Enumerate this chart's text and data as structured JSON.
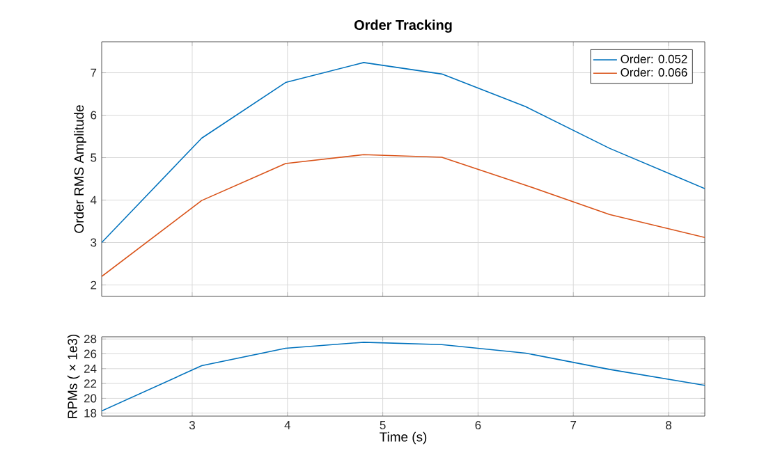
{
  "chart_data": [
    {
      "type": "line",
      "title": "Order Tracking",
      "ylabel": "Order RMS Amplitude",
      "xlim": [
        2.05,
        8.38
      ],
      "ylim": [
        1.73,
        7.73
      ],
      "xticks": [
        3,
        4,
        5,
        6,
        7,
        8
      ],
      "yticks": [
        2,
        3,
        4,
        5,
        6,
        7
      ],
      "grid": true,
      "legend": "top right",
      "tick_labels": "y",
      "x": [
        2.05,
        3.1,
        3.98,
        4.8,
        5.62,
        6.5,
        7.38,
        8.38
      ],
      "series": [
        {
          "name": "Order: 0.052",
          "color": "#0072bd",
          "values": [
            3.0,
            5.46,
            6.77,
            7.24,
            6.97,
            6.2,
            5.22,
            4.27
          ]
        },
        {
          "name": "Order: 0.066",
          "color": "#d95319",
          "values": [
            2.2,
            3.99,
            4.86,
            5.07,
            5.01,
            4.35,
            3.66,
            3.12
          ]
        }
      ]
    },
    {
      "type": "line",
      "xlabel": "Time (s)",
      "ylabel": "RPMs ( × 1e3)",
      "xlim": [
        2.05,
        8.38
      ],
      "ylim": [
        17.6,
        28.3
      ],
      "xticks": [
        3,
        4,
        5,
        6,
        7,
        8
      ],
      "yticks": [
        18,
        20,
        22,
        24,
        26,
        28
      ],
      "grid": true,
      "x": [
        2.05,
        3.1,
        3.98,
        4.8,
        5.62,
        6.5,
        7.38,
        8.38
      ],
      "series": [
        {
          "color": "#0072bd",
          "values": [
            18.3,
            24.4,
            26.75,
            27.56,
            27.25,
            26.1,
            23.9,
            21.75
          ]
        }
      ]
    }
  ]
}
